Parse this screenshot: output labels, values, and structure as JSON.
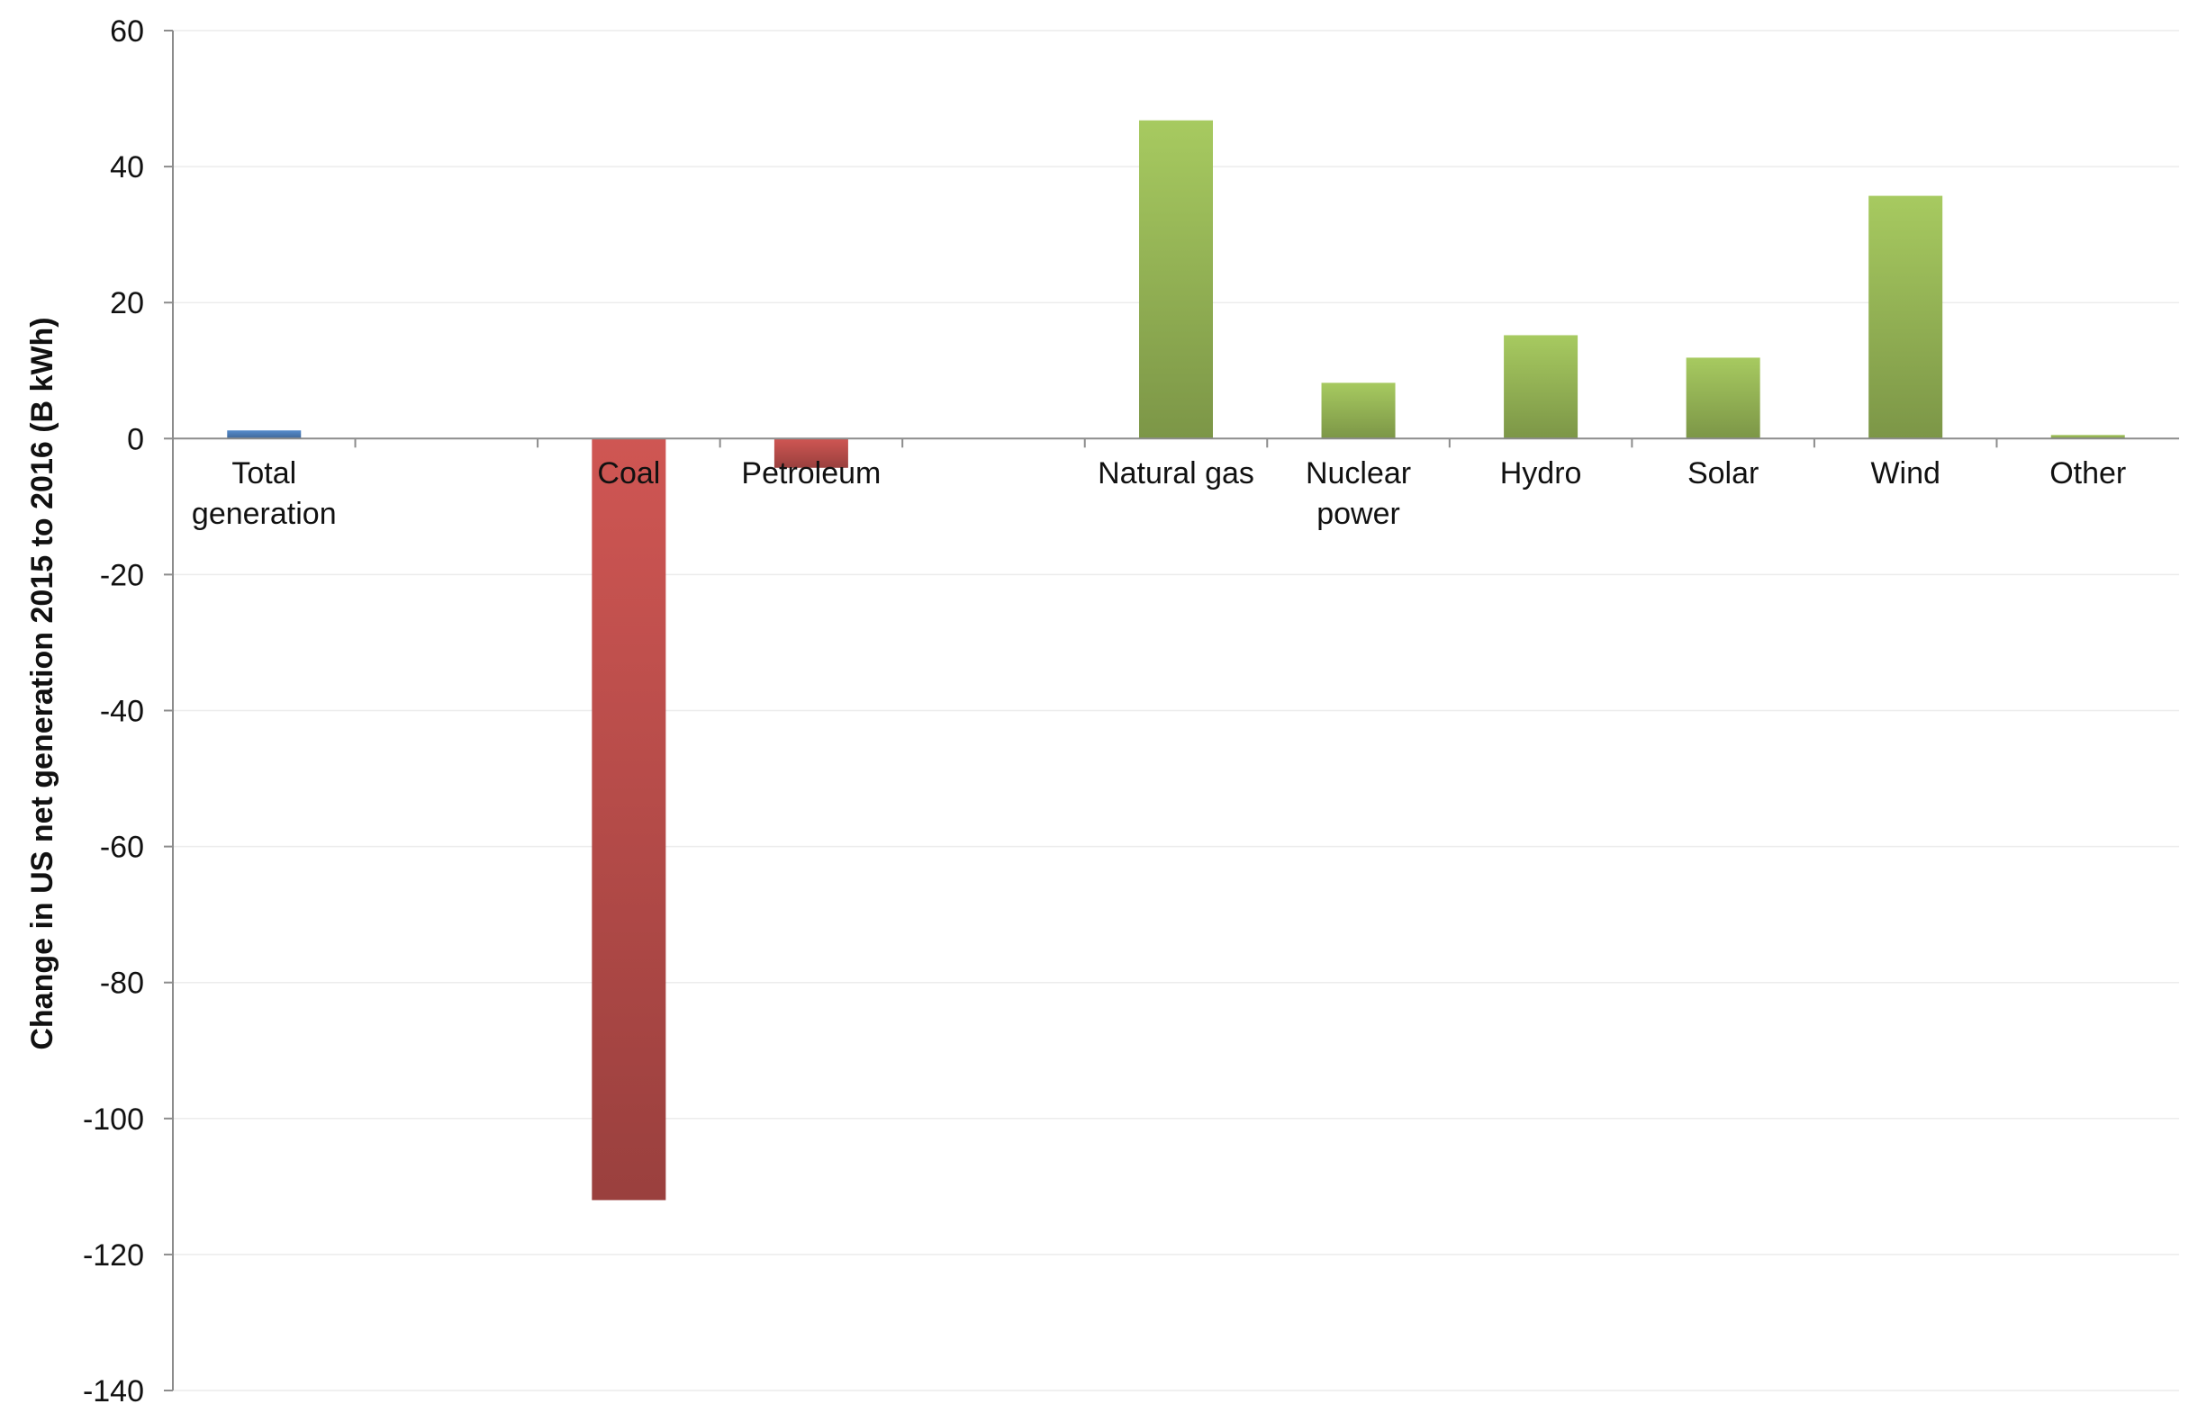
{
  "colors": {
    "total": "#4f81bd",
    "negative": "#c0504d",
    "positive": "#9bbb59",
    "axis": "#8c8c8c",
    "grid": "#ececec"
  },
  "chart_data": {
    "type": "bar",
    "ylabel": "Change in US net generation 2015 to 2016 (B kWh)",
    "ylim": [
      -140,
      60
    ],
    "yticks": [
      60,
      40,
      20,
      0,
      -20,
      -40,
      -60,
      -80,
      -100,
      -120,
      -140
    ],
    "grid": true,
    "categories": [
      {
        "label_lines": [
          "Total",
          "generation"
        ],
        "value": 1.2,
        "color_key": "total"
      },
      {
        "label_lines": [],
        "value": null,
        "color_key": null
      },
      {
        "label_lines": [
          "Coal"
        ],
        "value": -112.0,
        "color_key": "negative"
      },
      {
        "label_lines": [
          "Petroleum"
        ],
        "value": -4.3,
        "color_key": "negative"
      },
      {
        "label_lines": [],
        "value": null,
        "color_key": null
      },
      {
        "label_lines": [
          "Natural gas"
        ],
        "value": 46.8,
        "color_key": "positive"
      },
      {
        "label_lines": [
          "Nuclear",
          "power"
        ],
        "value": 8.2,
        "color_key": "positive"
      },
      {
        "label_lines": [
          "Hydro"
        ],
        "value": 15.2,
        "color_key": "positive"
      },
      {
        "label_lines": [
          "Solar"
        ],
        "value": 11.9,
        "color_key": "positive"
      },
      {
        "label_lines": [
          "Wind"
        ],
        "value": 35.7,
        "color_key": "positive"
      },
      {
        "label_lines": [
          "Other"
        ],
        "value": 0.5,
        "color_key": "positive"
      }
    ]
  }
}
